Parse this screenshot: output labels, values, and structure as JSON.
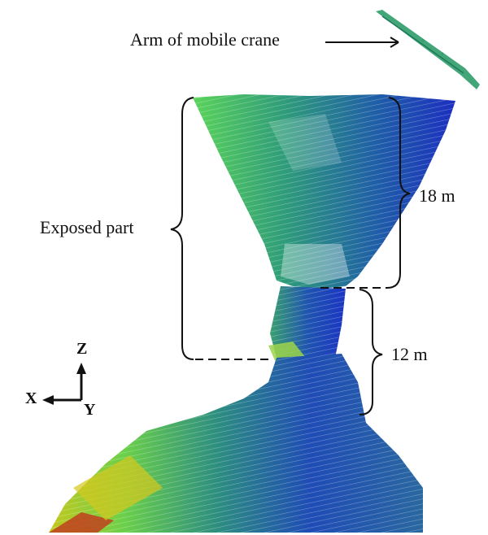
{
  "labels": {
    "arm": "Arm of mobile crane",
    "exposed": "Exposed part",
    "upper_height": "18 m",
    "lower_height": "12 m"
  },
  "axes": {
    "z": "Z",
    "x": "X",
    "y": "Y"
  },
  "colors": {
    "point_cloud_low": "#2c2fb8",
    "point_cloud_mid": "#1c8a7a",
    "point_cloud_high": "#4fcf55",
    "point_cloud_yellow": "#c9d21a",
    "point_cloud_red": "#c0401e",
    "annotation_ink": "#111111"
  }
}
